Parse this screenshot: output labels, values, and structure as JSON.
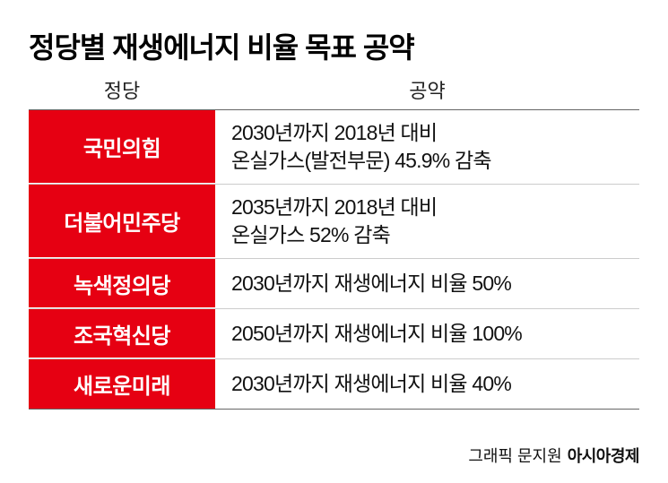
{
  "title": "정당별 재생에너지 비율 목표 공약",
  "headers": {
    "party": "정당",
    "pledge": "공약"
  },
  "table": {
    "party_bg_color": "#e60012",
    "party_text_color": "#ffffff",
    "pledge_text_color": "#111111",
    "party_fontsize": 24,
    "pledge_fontsize": 23,
    "rows": [
      {
        "party": "국민의힘",
        "pledge": "2030년까지 2018년 대비\n온실가스(발전부문) 45.9% 감축",
        "lines": 2
      },
      {
        "party": "더불어민주당",
        "pledge": "2035년까지 2018년 대비\n온실가스 52% 감축",
        "lines": 2
      },
      {
        "party": "녹색정의당",
        "pledge": "2030년까지 재생에너지 비율 50%",
        "lines": 1
      },
      {
        "party": "조국혁신당",
        "pledge": "2050년까지 재생에너지 비율 100%",
        "lines": 1
      },
      {
        "party": "새로운미래",
        "pledge": "2030년까지 재생에너지 비율 40%",
        "lines": 1
      }
    ]
  },
  "credit": {
    "label": "그래픽 문지원",
    "brand": "아시아경제"
  }
}
